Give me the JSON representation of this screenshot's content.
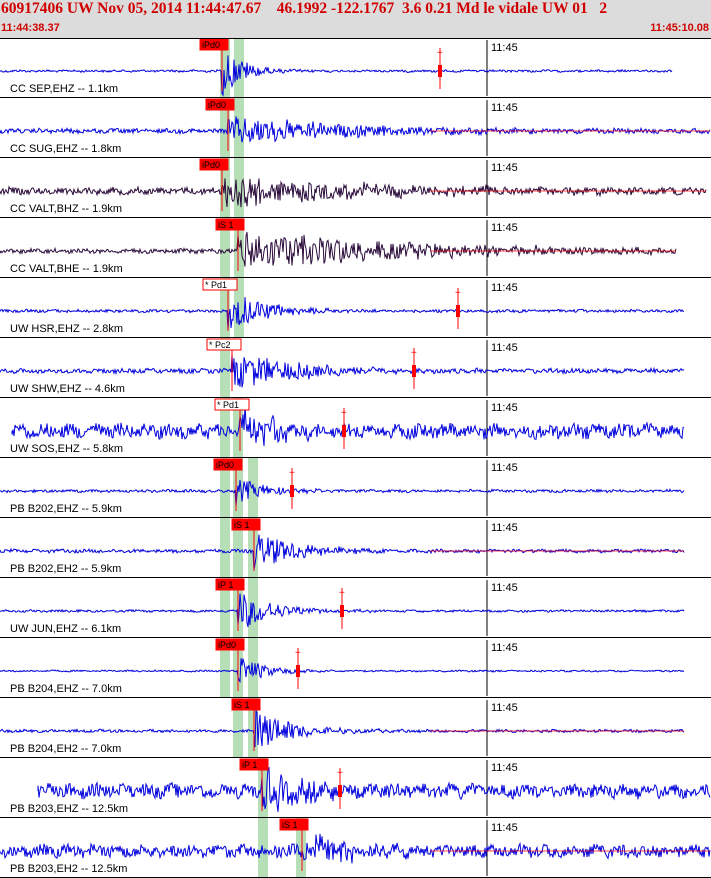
{
  "header": {
    "title": "60917406 UW Nov 05, 2014 11:44:47.67    46.1992 -122.1767  3.6 0.21 Md le vidale UW 01   2",
    "start_time": "11:44:38.37",
    "end_time": "11:45:10.08"
  },
  "colors": {
    "header_bg": "#dcdcdc",
    "header_text": "#d00000",
    "trace_blue": "#0000dd",
    "trace_dark": "#2a0a3a",
    "pick_red": "#ff0000",
    "window_green": "#b7dfb7"
  },
  "minute_marker_label": "11:45",
  "traces": [
    {
      "label": "CC SEP,EHZ -- 1.1km",
      "pick": "iPd0",
      "color": "blue",
      "amp": 0.9,
      "noise": 0.04,
      "extent": "half",
      "decay": 22
    },
    {
      "label": "CC SUG,EHZ -- 1.8km",
      "pick": "iPd0",
      "color": "blue",
      "amp": 0.55,
      "noise": 0.08,
      "extent": "full",
      "decay": 120
    },
    {
      "label": "CC VALT,BHZ -- 1.9km",
      "pick": "iPd0",
      "color": "dark",
      "amp": 0.6,
      "noise": 0.12,
      "extent": "full",
      "decay": 150
    },
    {
      "label": "CC VALT,BHE -- 1.9km",
      "pick": "iS 1",
      "color": "dark",
      "amp": 0.75,
      "noise": 0.08,
      "extent": "full",
      "decay": 170
    },
    {
      "label": "UW HSR,EHZ -- 2.8km",
      "pick": "* Pd1",
      "color": "blue",
      "amp": 0.75,
      "noise": 0.05,
      "extent": "half",
      "decay": 40
    },
    {
      "label": "UW SHW,EHZ -- 4.6km",
      "pick": "* Pc2",
      "color": "blue",
      "amp": 0.7,
      "noise": 0.08,
      "extent": "full",
      "decay": 70
    },
    {
      "label": "UW SOS,EHZ -- 5.8km",
      "pick": "* Pd1",
      "color": "blue",
      "amp": 0.75,
      "noise": 0.25,
      "extent": "full",
      "decay": 45
    },
    {
      "label": "PB B202,EHZ -- 5.9km",
      "pick": "iPd0",
      "color": "blue",
      "amp": 0.5,
      "noise": 0.05,
      "extent": "full",
      "decay": 30
    },
    {
      "label": "PB B202,EH2 -- 5.9km",
      "pick": "iS 1",
      "color": "blue",
      "amp": 0.7,
      "noise": 0.06,
      "extent": "full",
      "decay": 45
    },
    {
      "label": "UW JUN,EHZ -- 6.1km",
      "pick": "iP 1",
      "color": "blue",
      "amp": 0.75,
      "noise": 0.04,
      "extent": "full",
      "decay": 35
    },
    {
      "label": "PB B204,EHZ -- 7.0km",
      "pick": "iPd0",
      "color": "blue",
      "amp": 0.6,
      "noise": 0.03,
      "extent": "full",
      "decay": 25
    },
    {
      "label": "PB B204,EH2 -- 7.0km",
      "pick": "iS 1",
      "color": "blue",
      "amp": 0.8,
      "noise": 0.05,
      "extent": "full",
      "decay": 40
    },
    {
      "label": "PB B203,EHZ -- 12.5km",
      "pick": "iP 1",
      "color": "blue",
      "amp": 0.85,
      "noise": 0.25,
      "extent": "full",
      "decay": 40
    },
    {
      "label": "PB B203,EH2 -- 12.5km",
      "pick": "iS 1",
      "color": "blue",
      "amp": 0.75,
      "noise": 0.22,
      "extent": "full",
      "decay": 40
    }
  ]
}
